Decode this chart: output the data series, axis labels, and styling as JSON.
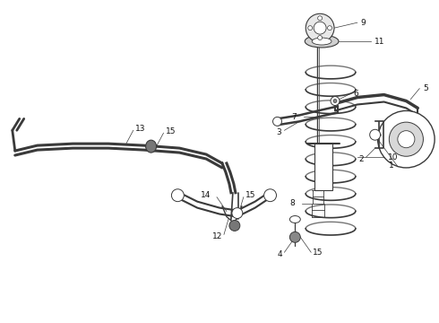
{
  "bg_color": "#ffffff",
  "line_color": "#3a3a3a",
  "label_color": "#111111",
  "fig_width": 4.9,
  "fig_height": 3.6,
  "dpi": 100,
  "font_size": 6.5
}
